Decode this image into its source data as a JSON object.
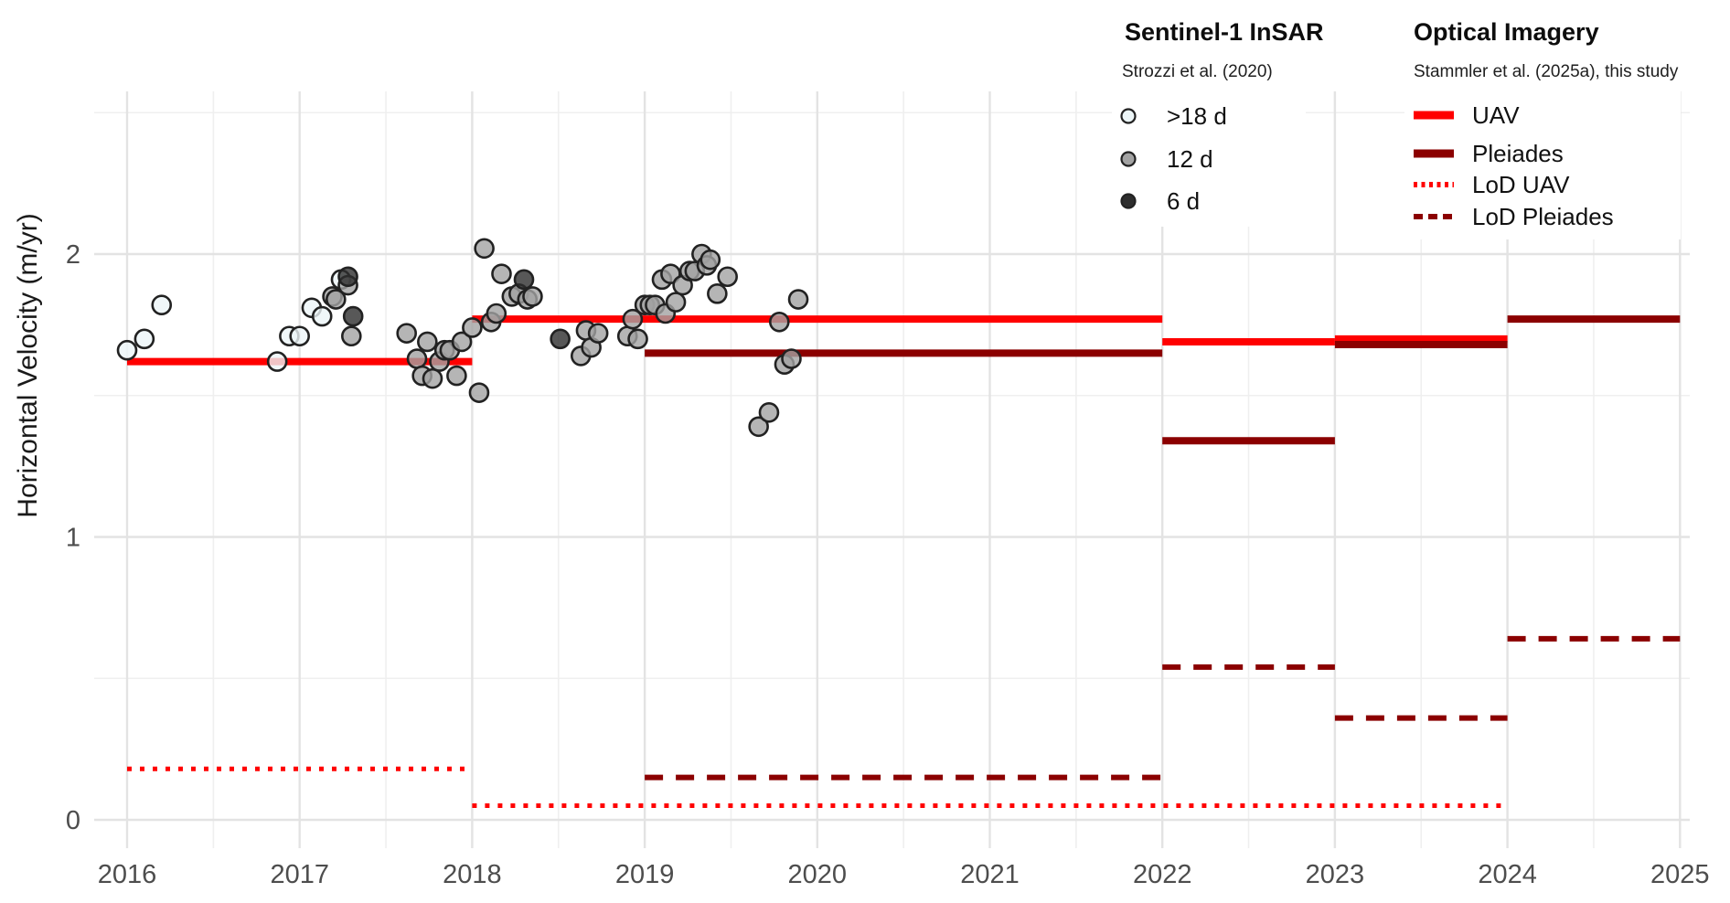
{
  "axes": {
    "y_title": "Horizontal Velocity (m/yr)",
    "x_ticks": [
      "2016",
      "2017",
      "2018",
      "2019",
      "2020",
      "2021",
      "2022",
      "2023",
      "2024",
      "2025"
    ],
    "y_ticks": [
      "0",
      "1",
      "2"
    ]
  },
  "legends": {
    "sentinel": {
      "title": "Sentinel-1 InSAR",
      "subtitle": "Strozzi et al. (2020)",
      "entries": [
        {
          "label": ">18 d",
          "marker": "circle-light-icon"
        },
        {
          "label": "12 d",
          "marker": "circle-gray-icon"
        },
        {
          "label": "6 d",
          "marker": "circle-dark-icon"
        }
      ]
    },
    "optical": {
      "title": "Optical Imagery",
      "subtitle": "Stammler et al. (2025a), this study",
      "entries": [
        {
          "label": "UAV",
          "marker": "line-solid-red-icon"
        },
        {
          "label": "Pleiades",
          "marker": "line-solid-darkred-icon"
        },
        {
          "label": "LoD UAV",
          "marker": "line-dotted-red-icon"
        },
        {
          "label": "LoD Pleiades",
          "marker": "line-dashed-darkred-icon"
        }
      ]
    }
  },
  "colors": {
    "uav_red": "#FF0000",
    "pleiades_darkred": "#8B0000",
    "point_light": "#ECF5F7",
    "point_gray": "#A3A3A3",
    "point_dark": "#2E2E2E",
    "point_stroke": "#222222",
    "grid_major": "#e3e3e3",
    "grid_minor": "#efefef"
  },
  "chart_data": {
    "type": "scatter",
    "title": "",
    "xlabel": "",
    "ylabel": "Horizontal Velocity (m/yr)",
    "xlim": [
      2015.8,
      2025.06
    ],
    "ylim": [
      -0.1,
      2.58
    ],
    "x_major_ticks": [
      2016,
      2017,
      2018,
      2019,
      2020,
      2021,
      2022,
      2023,
      2024,
      2025
    ],
    "x_minor_ticks": [
      2016.5,
      2017.5,
      2018.5,
      2019.5,
      2020.5,
      2021.5,
      2022.5,
      2023.5,
      2024.5
    ],
    "y_major_ticks": [
      0,
      1,
      2
    ],
    "y_minor_ticks": [
      0.5,
      1.5,
      2.5
    ],
    "grid": true,
    "legend_position": "top-right-inside",
    "scatter_series": [
      {
        "name": ">18 d",
        "color_key": "point_light",
        "points": [
          [
            2016.0,
            1.66
          ],
          [
            2016.1,
            1.7
          ],
          [
            2016.2,
            1.82
          ],
          [
            2016.87,
            1.62
          ],
          [
            2016.94,
            1.71
          ],
          [
            2017.0,
            1.71
          ],
          [
            2017.07,
            1.81
          ],
          [
            2017.13,
            1.78
          ],
          [
            2017.24,
            1.91
          ]
        ]
      },
      {
        "name": "12 d",
        "color_key": "point_gray",
        "points": [
          [
            2017.19,
            1.85
          ],
          [
            2017.21,
            1.84
          ],
          [
            2017.28,
            1.89
          ],
          [
            2017.3,
            1.71
          ],
          [
            2017.62,
            1.72
          ],
          [
            2017.68,
            1.63
          ],
          [
            2017.71,
            1.57
          ],
          [
            2017.74,
            1.69
          ],
          [
            2017.77,
            1.56
          ],
          [
            2017.81,
            1.62
          ],
          [
            2017.84,
            1.66
          ],
          [
            2017.87,
            1.66
          ],
          [
            2017.91,
            1.57
          ],
          [
            2017.94,
            1.69
          ],
          [
            2018.0,
            1.74
          ],
          [
            2018.04,
            1.51
          ],
          [
            2018.07,
            2.02
          ],
          [
            2018.11,
            1.76
          ],
          [
            2018.14,
            1.79
          ],
          [
            2018.17,
            1.93
          ],
          [
            2018.23,
            1.85
          ],
          [
            2018.27,
            1.86
          ],
          [
            2018.32,
            1.84
          ],
          [
            2018.35,
            1.85
          ],
          [
            2018.63,
            1.64
          ],
          [
            2018.66,
            1.73
          ],
          [
            2018.69,
            1.67
          ],
          [
            2018.73,
            1.72
          ],
          [
            2018.9,
            1.71
          ],
          [
            2018.93,
            1.77
          ],
          [
            2018.96,
            1.7
          ],
          [
            2019.0,
            1.82
          ],
          [
            2019.03,
            1.82
          ],
          [
            2019.06,
            1.82
          ],
          [
            2019.1,
            1.91
          ],
          [
            2019.12,
            1.79
          ],
          [
            2019.15,
            1.93
          ],
          [
            2019.18,
            1.83
          ],
          [
            2019.22,
            1.89
          ],
          [
            2019.26,
            1.94
          ],
          [
            2019.29,
            1.94
          ],
          [
            2019.33,
            2.0
          ],
          [
            2019.36,
            1.96
          ],
          [
            2019.38,
            1.98
          ],
          [
            2019.42,
            1.86
          ],
          [
            2019.48,
            1.92
          ],
          [
            2019.66,
            1.39
          ],
          [
            2019.72,
            1.44
          ],
          [
            2019.78,
            1.76
          ],
          [
            2019.81,
            1.61
          ],
          [
            2019.85,
            1.63
          ],
          [
            2019.89,
            1.84
          ]
        ]
      },
      {
        "name": "6 d",
        "color_key": "point_dark",
        "points": [
          [
            2017.28,
            1.92
          ],
          [
            2017.31,
            1.78
          ],
          [
            2018.3,
            1.91
          ],
          [
            2018.51,
            1.7
          ]
        ]
      }
    ],
    "segment_series": [
      {
        "name": "LoD UAV",
        "style": "dotted",
        "color_key": "uav_red",
        "width": 5,
        "segments": [
          [
            2016,
            2018,
            0.18
          ],
          [
            2018,
            2024,
            0.05
          ]
        ]
      },
      {
        "name": "LoD Pleiades",
        "style": "dashed",
        "color_key": "pleiades_darkred",
        "width": 6,
        "segments": [
          [
            2019,
            2022,
            0.15
          ],
          [
            2022,
            2023,
            0.54
          ],
          [
            2023,
            2024,
            0.36
          ],
          [
            2024,
            2025,
            0.64
          ]
        ]
      },
      {
        "name": "UAV",
        "style": "solid",
        "color_key": "uav_red",
        "width": 8,
        "segments": [
          [
            2016,
            2018,
            1.62
          ],
          [
            2018,
            2022,
            1.77
          ],
          [
            2022,
            2023,
            1.69
          ],
          [
            2023,
            2024,
            1.7
          ]
        ]
      },
      {
        "name": "Pleiades",
        "style": "solid",
        "color_key": "pleiades_darkred",
        "width": 8,
        "segments": [
          [
            2019,
            2022,
            1.65
          ],
          [
            2022,
            2023,
            1.34
          ],
          [
            2023,
            2024,
            1.68
          ],
          [
            2024,
            2025,
            1.77
          ]
        ]
      }
    ]
  }
}
